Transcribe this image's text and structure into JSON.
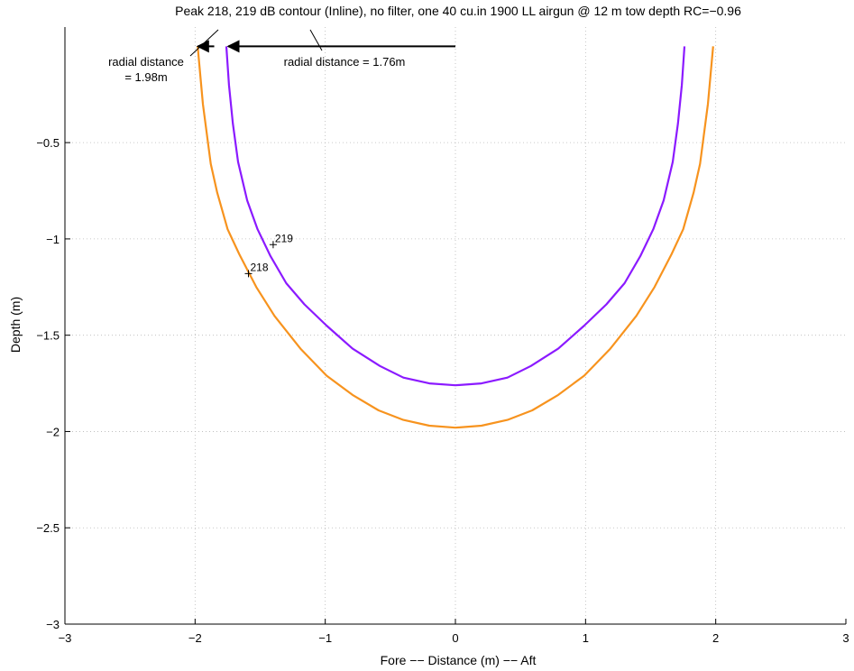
{
  "chart_data": {
    "type": "line",
    "title": "Peak 218, 219 dB contour (Inline), no filter, one 40 cu.in 1900 LL airgun  @ 12 m  tow depth RC=−0.96",
    "xlabel": "Fore −− Distance (m) −− Aft",
    "ylabel": "Depth (m)",
    "xlim": [
      -3,
      3
    ],
    "ylim": [
      -3,
      0.1
    ],
    "x_ticks": [
      -3,
      -2,
      -1,
      0,
      1,
      2,
      3
    ],
    "x_tick_labels": [
      "−3",
      "−2",
      "−1",
      "0",
      "1",
      "2",
      "3"
    ],
    "y_ticks": [
      -3,
      -2.5,
      -2,
      -1.5,
      -1,
      -0.5
    ],
    "y_tick_labels": [
      "−3",
      "−2.5",
      "−2",
      "−1.5",
      "−1",
      "−0.5"
    ],
    "grid": true,
    "series": [
      {
        "name": "218",
        "color": "#f7931e",
        "radius": 1.98,
        "x": [
          -1.98,
          -1.96,
          -1.94,
          -1.88,
          -1.83,
          -1.75,
          -1.66,
          -1.53,
          -1.39,
          -1.19,
          -0.99,
          -0.79,
          -0.59,
          -0.4,
          -0.2,
          0.0,
          0.2,
          0.4,
          0.59,
          0.79,
          0.99,
          1.19,
          1.39,
          1.53,
          1.66,
          1.75,
          1.83,
          1.88,
          1.94,
          1.96,
          1.98
        ],
        "y": [
          0.0,
          -0.15,
          -0.3,
          -0.61,
          -0.76,
          -0.95,
          -1.08,
          -1.25,
          -1.4,
          -1.57,
          -1.71,
          -1.81,
          -1.89,
          -1.94,
          -1.97,
          -1.98,
          -1.97,
          -1.94,
          -1.89,
          -1.81,
          -1.71,
          -1.57,
          -1.4,
          -1.25,
          -1.08,
          -0.95,
          -0.76,
          -0.61,
          -0.3,
          -0.15,
          0.0
        ]
      },
      {
        "name": "219",
        "color": "#8b1aff",
        "radius": 1.76,
        "x": [
          -1.76,
          -1.74,
          -1.71,
          -1.67,
          -1.6,
          -1.52,
          -1.42,
          -1.3,
          -1.16,
          -0.99,
          -0.79,
          -0.58,
          -0.4,
          -0.2,
          0.0,
          0.2,
          0.4,
          0.58,
          0.79,
          0.99,
          1.16,
          1.3,
          1.42,
          1.52,
          1.6,
          1.67,
          1.71,
          1.74,
          1.76
        ],
        "y": [
          0.0,
          -0.2,
          -0.4,
          -0.6,
          -0.8,
          -0.95,
          -1.09,
          -1.23,
          -1.34,
          -1.45,
          -1.57,
          -1.66,
          -1.72,
          -1.75,
          -1.76,
          -1.75,
          -1.72,
          -1.66,
          -1.57,
          -1.45,
          -1.34,
          -1.23,
          -1.09,
          -0.95,
          -0.8,
          -0.6,
          -0.4,
          -0.2,
          0.0
        ]
      }
    ],
    "contour_labels": [
      {
        "text": "219",
        "x": -1.4,
        "y": -1.03
      },
      {
        "text": "218",
        "x": -1.59,
        "y": -1.18
      }
    ],
    "annotations": [
      {
        "lines": [
          "radial distance = 1.76m"
        ],
        "arrow_from": [
          0.0,
          0.0
        ],
        "arrow_to": [
          -1.76,
          0.0
        ]
      },
      {
        "lines": [
          "radial distance",
          "= 1.98m"
        ],
        "arrow_from": [
          -1.95,
          0.0
        ],
        "arrow_to": [
          -1.98,
          0.0
        ]
      }
    ]
  }
}
